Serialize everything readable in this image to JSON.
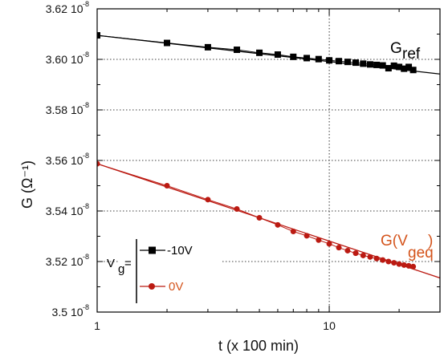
{
  "chart_data": {
    "type": "line",
    "title": "",
    "xlabel": "t (x 100 min)",
    "ylabel": "G (Ω⁻¹)",
    "x_scale": "log",
    "xlim": [
      1,
      30
    ],
    "ylim": [
      3.5e-08,
      3.62e-08
    ],
    "grid": "dotted",
    "x_ticks": [
      {
        "value": 1,
        "label": "1"
      },
      {
        "value": 10,
        "label": "10"
      }
    ],
    "y_ticks": [
      {
        "value": 3.5e-08,
        "mantissa": "3.5",
        "exponent": "-8"
      },
      {
        "value": 3.52e-08,
        "mantissa": "3.52",
        "exponent": "-8"
      },
      {
        "value": 3.54e-08,
        "mantissa": "3.54",
        "exponent": "-8"
      },
      {
        "value": 3.56e-08,
        "mantissa": "3.56",
        "exponent": "-8"
      },
      {
        "value": 3.58e-08,
        "mantissa": "3.58",
        "exponent": "-8"
      },
      {
        "value": 3.6e-08,
        "mantissa": "3.60",
        "exponent": "-8"
      },
      {
        "value": 3.62e-08,
        "mantissa": "3.62",
        "exponent": "-8"
      }
    ],
    "tick_base": "10",
    "series": [
      {
        "name": "-10V",
        "color": "#000000",
        "marker": "square",
        "x": [
          1,
          2,
          3,
          4,
          5,
          6,
          7,
          8,
          9,
          10,
          11,
          12,
          13,
          14,
          15,
          16,
          17,
          18,
          19,
          20,
          21,
          22,
          23
        ],
        "y": [
          3.6095e-08,
          3.6065e-08,
          3.6048e-08,
          3.6038e-08,
          3.6026e-08,
          3.6019e-08,
          3.601e-08,
          3.6005e-08,
          3.6001e-08,
          3.5996e-08,
          3.5993e-08,
          3.599e-08,
          3.5987e-08,
          3.5983e-08,
          3.598e-08,
          3.5978e-08,
          3.5976e-08,
          3.5965e-08,
          3.5975e-08,
          3.597e-08,
          3.5963e-08,
          3.597e-08,
          3.5958e-08
        ],
        "fit": {
          "x": [
            1,
            30
          ],
          "y": [
            3.6095e-08,
            3.5942e-08
          ]
        }
      },
      {
        "name": "0V",
        "color": "#bb1a12",
        "marker": "circle",
        "x": [
          1,
          2,
          3,
          4,
          5,
          6,
          7,
          8,
          9,
          10,
          11,
          12,
          13,
          14,
          15,
          16,
          17,
          18,
          19,
          20,
          21,
          22,
          23
        ],
        "y": [
          3.5587e-08,
          3.55e-08,
          3.5445e-08,
          3.5408e-08,
          3.5373e-08,
          3.5345e-08,
          3.5319e-08,
          3.5302e-08,
          3.5285e-08,
          3.527e-08,
          3.5255e-08,
          3.5243e-08,
          3.5233e-08,
          3.5224e-08,
          3.5218e-08,
          3.5212e-08,
          3.5206e-08,
          3.52e-08,
          3.5195e-08,
          3.519e-08,
          3.5186e-08,
          3.5183e-08,
          3.518e-08
        ],
        "fit": {
          "x": [
            1,
            30
          ],
          "y": [
            3.5587e-08,
            3.5135e-08
          ]
        }
      }
    ],
    "annotations": {
      "gref": {
        "main": "G",
        "sub": "ref",
        "color": "#000000"
      },
      "gveq": {
        "pre": "G(V",
        "sub": "geq",
        "post": ")",
        "color": "#d4541c"
      }
    },
    "legend": {
      "position": "bottom-left",
      "symbol": "V",
      "symbol_sub": "g",
      "equals": "=",
      "entries": [
        "-10V",
        "0V"
      ]
    }
  }
}
